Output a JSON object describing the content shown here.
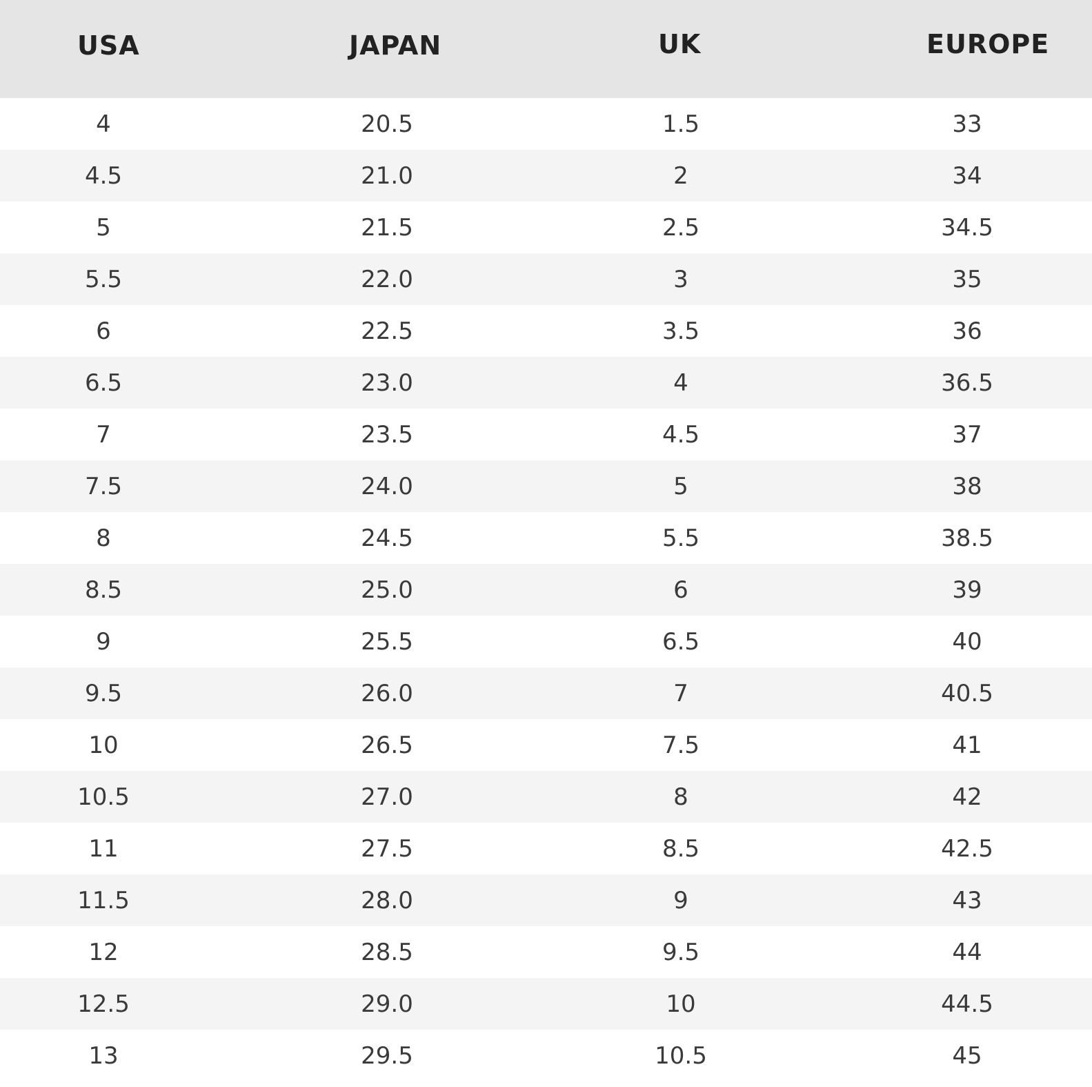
{
  "table": {
    "headers": [
      "USA",
      "JAPAN",
      "UK",
      "EUROPE"
    ],
    "rows": [
      [
        "4",
        "20.5",
        "1.5",
        "33"
      ],
      [
        "4.5",
        "21.0",
        "2",
        "34"
      ],
      [
        "5",
        "21.5",
        "2.5",
        "34.5"
      ],
      [
        "5.5",
        "22.0",
        "3",
        "35"
      ],
      [
        "6",
        "22.5",
        "3.5",
        "36"
      ],
      [
        "6.5",
        "23.0",
        "4",
        "36.5"
      ],
      [
        "7",
        "23.5",
        "4.5",
        "37"
      ],
      [
        "7.5",
        "24.0",
        "5",
        "38"
      ],
      [
        "8",
        "24.5",
        "5.5",
        "38.5"
      ],
      [
        "8.5",
        "25.0",
        "6",
        "39"
      ],
      [
        "9",
        "25.5",
        "6.5",
        "40"
      ],
      [
        "9.5",
        "26.0",
        "7",
        "40.5"
      ],
      [
        "10",
        "26.5",
        "7.5",
        "41"
      ],
      [
        "10.5",
        "27.0",
        "8",
        "42"
      ],
      [
        "11",
        "27.5",
        "8.5",
        "42.5"
      ],
      [
        "11.5",
        "28.0",
        "9",
        "43"
      ],
      [
        "12",
        "28.5",
        "9.5",
        "44"
      ],
      [
        "12.5",
        "29.0",
        "10",
        "44.5"
      ],
      [
        "13",
        "29.5",
        "10.5",
        "45"
      ]
    ]
  },
  "colors": {
    "header_background": "#e5e5e5",
    "row_alt_background": "#f4f4f4",
    "row_background": "#ffffff",
    "text": "#3a3a3a"
  }
}
